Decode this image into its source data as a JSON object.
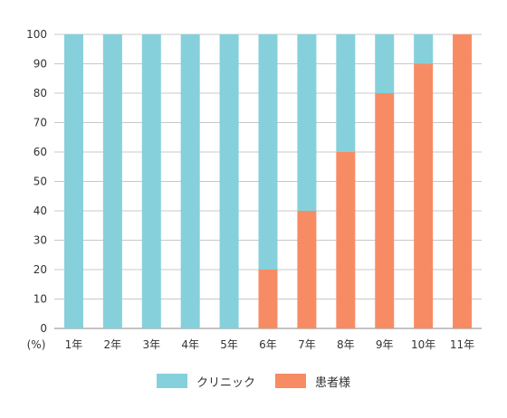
{
  "chart_data": {
    "type": "bar",
    "stacked": true,
    "unit_label": "(%)",
    "categories": [
      "1年",
      "2年",
      "3年",
      "4年",
      "5年",
      "6年",
      "7年",
      "8年",
      "9年",
      "10年",
      "11年"
    ],
    "series": [
      {
        "name": "患者様",
        "color": "#f78c64",
        "values": [
          0,
          0,
          0,
          0,
          0,
          20,
          40,
          60,
          80,
          90,
          100
        ]
      },
      {
        "name": "クリニック",
        "color": "#85d0db",
        "values": [
          100,
          100,
          100,
          100,
          100,
          80,
          60,
          40,
          20,
          10,
          0
        ]
      }
    ],
    "yticks": [
      0,
      10,
      20,
      30,
      40,
      50,
      60,
      70,
      80,
      90,
      100
    ],
    "ylim": [
      0,
      100
    ],
    "grid": true,
    "legend_position": "bottom"
  },
  "legend": [
    {
      "label": "クリニック",
      "color": "#85d0db"
    },
    {
      "label": "患者様",
      "color": "#f78c64"
    }
  ]
}
